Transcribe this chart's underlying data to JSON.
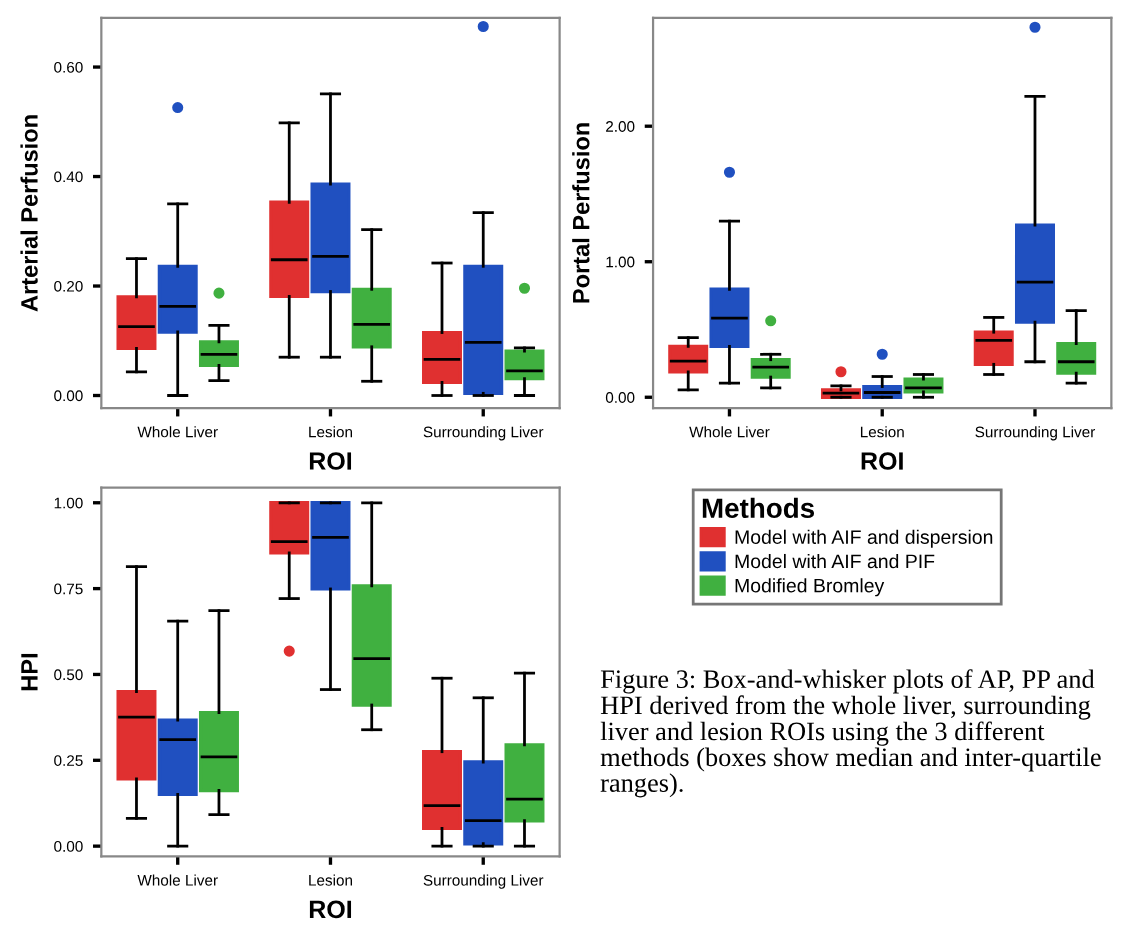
{
  "chart_data": [
    {
      "type": "box",
      "categories": [
        "Whole Liver",
        "Lesion",
        "Surrounding Liver"
      ],
      "xlabel": "ROI",
      "ylabel": "Arterial Perfusion",
      "ylim": [
        -0.023,
        0.69
      ],
      "yticks": [
        {
          "value": 0,
          "label": "0.00"
        },
        {
          "value": 0.2,
          "label": "0.20"
        },
        {
          "value": 0.4,
          "label": "0.40"
        },
        {
          "value": 0.6,
          "label": "0.60"
        }
      ],
      "grid": false,
      "legend": false,
      "series": [
        {
          "color": "#e03030",
          "boxes": [
            {
              "low": 0.043,
              "q1": 0.086,
              "median": 0.126,
              "q3": 0.18,
              "high": 0.25
            },
            {
              "low": 0.07,
              "q1": 0.181,
              "median": 0.248,
              "q3": 0.353,
              "high": 0.498
            },
            {
              "low": 0.0,
              "q1": 0.024,
              "median": 0.066,
              "q3": 0.115,
              "high": 0.242
            }
          ]
        },
        {
          "color": "#2050c0",
          "boxes": [
            {
              "low": 0.0,
              "q1": 0.116,
              "median": 0.163,
              "q3": 0.236,
              "high": 0.35,
              "outliers": [
                0.526
              ]
            },
            {
              "low": 0.07,
              "q1": 0.19,
              "median": 0.254,
              "q3": 0.386,
              "high": 0.551
            },
            {
              "low": 0.0,
              "q1": 0.004,
              "median": 0.097,
              "q3": 0.236,
              "high": 0.334,
              "outliers": [
                0.674
              ]
            }
          ]
        },
        {
          "color": "#40b040",
          "boxes": [
            {
              "low": 0.027,
              "q1": 0.055,
              "median": 0.075,
              "q3": 0.098,
              "high": 0.128,
              "outliers": [
                0.187
              ]
            },
            {
              "low": 0.026,
              "q1": 0.089,
              "median": 0.13,
              "q3": 0.194,
              "high": 0.303
            },
            {
              "low": 0.0,
              "q1": 0.031,
              "median": 0.045,
              "q3": 0.081,
              "high": 0.087,
              "outliers": [
                0.196
              ]
            }
          ]
        }
      ]
    },
    {
      "type": "box",
      "categories": [
        "Whole Liver",
        "Lesion",
        "Surrounding Liver"
      ],
      "xlabel": "ROI",
      "ylabel": "Portal Perfusion",
      "ylim": [
        -0.08,
        2.8
      ],
      "yticks": [
        {
          "value": 0,
          "label": "0.00"
        },
        {
          "value": 1,
          "label": "1.00"
        },
        {
          "value": 2,
          "label": "2.00"
        }
      ],
      "grid": false,
      "legend": false,
      "series": [
        {
          "color": "#e03030",
          "boxes": [
            {
              "low": 0.054,
              "q1": 0.188,
              "median": 0.267,
              "q3": 0.376,
              "high": 0.44
            },
            {
              "low": 0.0,
              "q1": 0.0,
              "median": 0.03,
              "q3": 0.054,
              "high": 0.084,
              "outliers": [
                0.188
              ]
            },
            {
              "low": 0.168,
              "q1": 0.243,
              "median": 0.42,
              "q3": 0.48,
              "high": 0.589
            }
          ]
        },
        {
          "color": "#2050c0",
          "boxes": [
            {
              "low": 0.104,
              "q1": 0.376,
              "median": 0.584,
              "q3": 0.797,
              "high": 1.3,
              "outliers": [
                1.66
              ]
            },
            {
              "low": 0.0,
              "q1": 0.0,
              "median": 0.035,
              "q3": 0.079,
              "high": 0.153,
              "outliers": [
                0.317
              ]
            },
            {
              "low": 0.262,
              "q1": 0.554,
              "median": 0.85,
              "q3": 1.27,
              "high": 2.22,
              "outliers": [
                2.73
              ]
            }
          ]
        },
        {
          "color": "#40b040",
          "boxes": [
            {
              "low": 0.069,
              "q1": 0.149,
              "median": 0.223,
              "q3": 0.277,
              "high": 0.317,
              "outliers": [
                0.564
              ]
            },
            {
              "low": 0.0,
              "q1": 0.04,
              "median": 0.069,
              "q3": 0.134,
              "high": 0.168
            },
            {
              "low": 0.104,
              "q1": 0.178,
              "median": 0.262,
              "q3": 0.396,
              "high": 0.639
            }
          ]
        }
      ]
    },
    {
      "type": "box",
      "categories": [
        "Whole Liver",
        "Lesion",
        "Surrounding Liver"
      ],
      "xlabel": "ROI",
      "ylabel": "HPI",
      "ylim": [
        -0.03,
        1.044
      ],
      "yticks": [
        {
          "value": 0,
          "label": "0.00"
        },
        {
          "value": 0.25,
          "label": "0.25"
        },
        {
          "value": 0.5,
          "label": "0.50"
        },
        {
          "value": 0.75,
          "label": "0.75"
        },
        {
          "value": 1,
          "label": "1.00"
        }
      ],
      "grid": false,
      "legend": "right",
      "legend_title": "Methods",
      "annotations": [
        "Figure 3: Box-and-whisker plots of AP, PP and HPI derived from the whole liver, surrounding liver and lesion ROIs using the 3 different methods (boxes show median and inter-quartile ranges)."
      ],
      "series": [
        {
          "name": "Model with AIF and dispersion",
          "color": "#e03030",
          "boxes": [
            {
              "low": 0.081,
              "q1": 0.196,
              "median": 0.376,
              "q3": 0.45,
              "high": 0.814
            },
            {
              "low": 0.721,
              "q1": 0.854,
              "median": 0.887,
              "q3": 1.0,
              "high": 1.0,
              "outliers": [
                0.568
              ]
            },
            {
              "low": 0.0,
              "q1": 0.052,
              "median": 0.118,
              "q3": 0.275,
              "high": 0.489
            }
          ]
        },
        {
          "name": "Model with AIF and PIF",
          "color": "#2050c0",
          "boxes": [
            {
              "low": 0.0,
              "q1": 0.151,
              "median": 0.31,
              "q3": 0.367,
              "high": 0.655
            },
            {
              "low": 0.456,
              "q1": 0.749,
              "median": 0.899,
              "q3": 1.0,
              "high": 1.0
            },
            {
              "low": 0.0,
              "q1": 0.007,
              "median": 0.074,
              "q3": 0.245,
              "high": 0.432
            }
          ]
        },
        {
          "name": "Modified Bromley",
          "color": "#40b040",
          "boxes": [
            {
              "low": 0.092,
              "q1": 0.162,
              "median": 0.26,
              "q3": 0.389,
              "high": 0.686
            },
            {
              "low": 0.339,
              "q1": 0.411,
              "median": 0.546,
              "q3": 0.758,
              "high": 1.0
            },
            {
              "low": 0.0,
              "q1": 0.074,
              "median": 0.137,
              "q3": 0.295,
              "high": 0.504
            }
          ]
        }
      ]
    }
  ]
}
